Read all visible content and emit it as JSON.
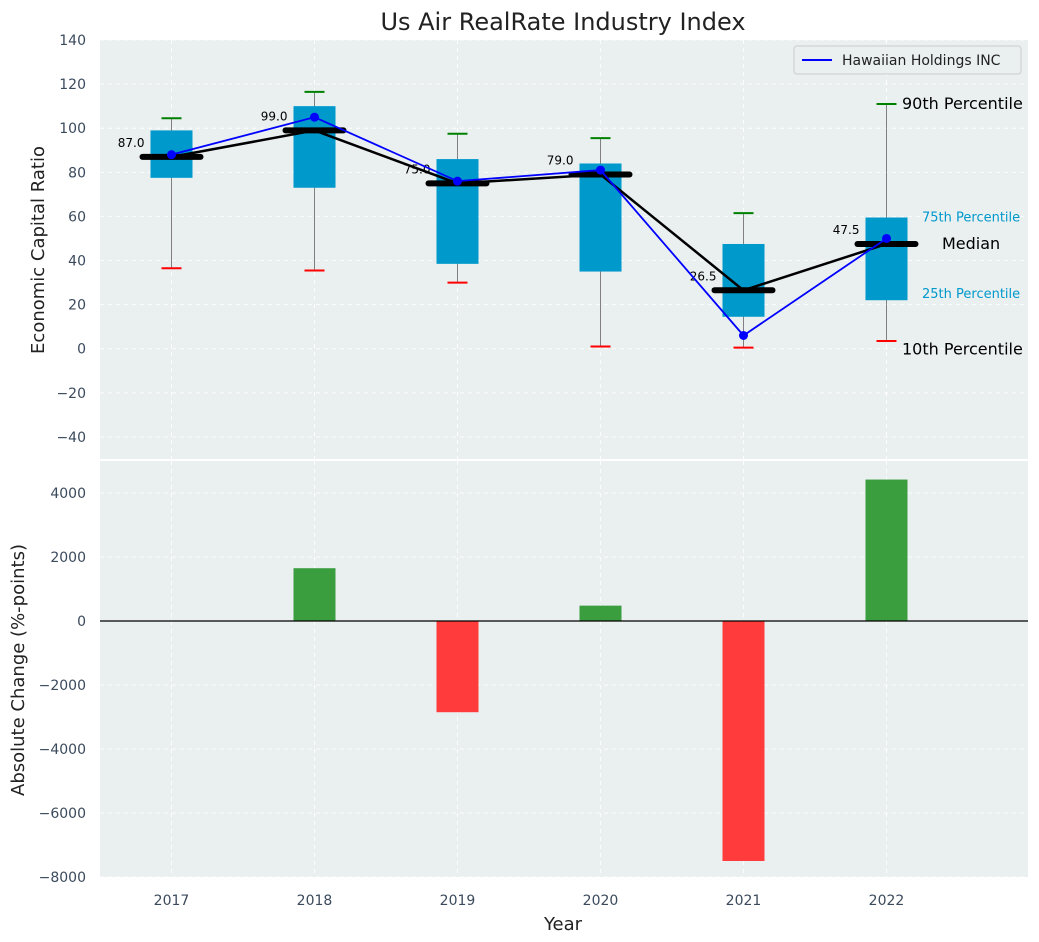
{
  "chart_data": [
    {
      "type": "box",
      "title": "Us Air RealRate Industry Index",
      "xlabel": "",
      "ylabel": "Economic Capital Ratio",
      "ylim": [
        -50,
        140
      ],
      "yticks": [
        -40,
        -20,
        0,
        20,
        40,
        60,
        80,
        100,
        120,
        140
      ],
      "ytick_labels": [
        "−40",
        "−20",
        "0",
        "20",
        "40",
        "60",
        "80",
        "100",
        "120",
        "140"
      ],
      "categories": [
        "2017",
        "2018",
        "2019",
        "2020",
        "2021",
        "2022"
      ],
      "boxes": [
        {
          "year": "2017",
          "p10": 36.5,
          "p25": 77.5,
          "median": 87.0,
          "p75": 99.0,
          "p90": 104.5,
          "median_label": "87.0"
        },
        {
          "year": "2018",
          "p10": 35.5,
          "p25": 73.0,
          "median": 99.0,
          "p75": 110.0,
          "p90": 116.5,
          "median_label": "99.0"
        },
        {
          "year": "2019",
          "p10": 30.0,
          "p25": 38.5,
          "median": 75.0,
          "p75": 86.0,
          "p90": 97.5,
          "median_label": "75.0"
        },
        {
          "year": "2020",
          "p10": 1.0,
          "p25": 35.0,
          "median": 79.0,
          "p75": 84.0,
          "p90": 95.5,
          "median_label": "79.0"
        },
        {
          "year": "2021",
          "p10": 0.5,
          "p25": 14.5,
          "median": 26.5,
          "p75": 47.5,
          "p90": 61.5,
          "median_label": "26.5"
        },
        {
          "year": "2022",
          "p10": 3.5,
          "p25": 22.0,
          "median": 47.5,
          "p75": 59.5,
          "p90": 111.0,
          "median_label": "47.5"
        }
      ],
      "series": [
        {
          "name": "Hawaiian Holdings INC",
          "values": [
            88,
            105,
            76,
            81,
            6,
            50
          ],
          "color": "#0000ff"
        }
      ],
      "legend": "top-right",
      "annotations": {
        "p90": "90th Percentile",
        "p75": "75th Percentile",
        "median": "Median",
        "p25": "25th Percentile",
        "p10": "10th Percentile"
      },
      "colors": {
        "box": "#0099cc",
        "median_line": "#000000",
        "whisker_top": "#008000",
        "whisker_bottom": "#ff0000",
        "whisker": "#808080",
        "background": "#eaeff0"
      }
    },
    {
      "type": "bar",
      "xlabel": "Year",
      "ylabel": "Absolute Change (%-points)",
      "ylim": [
        -8000,
        5000
      ],
      "yticks": [
        -8000,
        -6000,
        -4000,
        -2000,
        0,
        2000,
        4000
      ],
      "ytick_labels": [
        "−8000",
        "−6000",
        "−4000",
        "−2000",
        "0",
        "2000",
        "4000"
      ],
      "categories": [
        "2017",
        "2018",
        "2019",
        "2020",
        "2021",
        "2022"
      ],
      "values": [
        0,
        1650,
        -2850,
        480,
        -7500,
        4420
      ],
      "colors": {
        "positive": "#3a9e3f",
        "negative": "#ff3b3b",
        "zero_line": "#000000"
      }
    }
  ]
}
